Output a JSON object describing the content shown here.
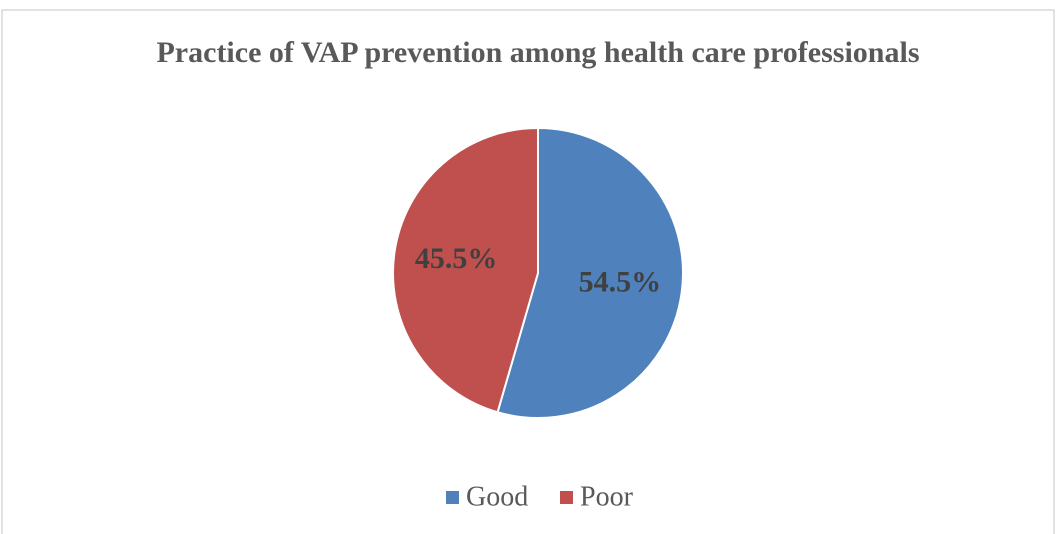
{
  "chart_data": {
    "type": "pie",
    "title": "Practice of VAP prevention among health care professionals",
    "categories": [
      "Good",
      "Poor"
    ],
    "values": [
      54.5,
      45.5
    ],
    "value_labels": [
      "54.5%",
      "45.5%"
    ],
    "colors": [
      "#4f81bd",
      "#c0504d"
    ],
    "legend": "bottom"
  }
}
